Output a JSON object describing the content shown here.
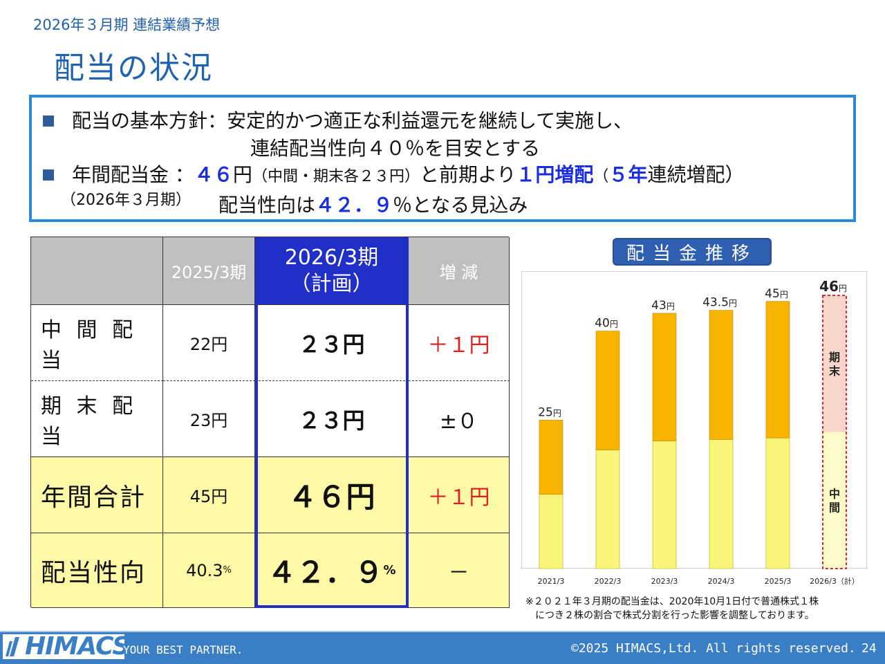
{
  "header": {
    "subtitle": "2026年３月期 連結業績予想",
    "title": "配当の状況"
  },
  "policy": {
    "line1_label": "配当の基本方針：",
    "line1_text": "安定的かつ適正な利益還元を継続して実施し、",
    "line2_text": "連結配当性向４０％を目安とする",
    "line3_label": "年間配当金 ：",
    "line3_amount": "４６",
    "line3_yen": "円",
    "line3_paren": "（中間・期末各２３円）",
    "line3_mid": "と前期より",
    "line3_increase": "１円増配",
    "line3_paren_open": "（",
    "line3_years": "５年",
    "line3_continuous": "連続増配）",
    "line4_label": "（2026年３月期）",
    "line4_prefix": "配当性向は",
    "line4_ratio": "４２．９",
    "line4_suffix": "％となる見込み"
  },
  "table": {
    "headers": [
      "",
      "2025/3期",
      "2026/3期",
      "（計画）",
      "増 減"
    ],
    "rows": [
      {
        "label": "中 間 配 当",
        "prev": "22円",
        "plan": "２３円",
        "diff": "＋１円"
      },
      {
        "label": "期 末 配 当",
        "prev": "23円",
        "plan": "２３円",
        "diff": "±０"
      },
      {
        "label": "年間合計",
        "prev": "45円",
        "plan": "４６円",
        "diff": "＋１円"
      },
      {
        "label": "配当性向",
        "prev": "40.3",
        "prev_unit": "%",
        "plan": "４２．９",
        "plan_unit": "%",
        "diff": "－"
      }
    ]
  },
  "chart_title": "配当金推移",
  "chart_data": {
    "type": "bar",
    "stacked": true,
    "categories": [
      "2021/3",
      "2022/3",
      "2023/3",
      "2024/3",
      "2025/3",
      "2026/3（計）"
    ],
    "series": [
      {
        "name": "中間",
        "values": [
          12.5,
          20,
          21.5,
          21.75,
          22,
          23
        ]
      },
      {
        "name": "期末",
        "values": [
          12.5,
          20,
          21.5,
          21.75,
          23,
          23
        ]
      }
    ],
    "totals": [
      25,
      40,
      43,
      43.5,
      45,
      46
    ],
    "total_labels": [
      "25円",
      "40円",
      "43円",
      "43.5円",
      "45円",
      "46円"
    ],
    "forecast_index": 5,
    "ylim": [
      0,
      48
    ],
    "colors": {
      "interim": "#f8f57a",
      "yearend": "#f7b500",
      "forecast_interim": "#fdfbc8",
      "forecast_yearend": "#f8d6cc",
      "forecast_border": "#d62a2a"
    }
  },
  "chart_note": {
    "line1": "※２０２１年３月期の配当金は、2020年10月1日付で普通株式１株",
    "line2": "につき２株の割合で株式分割を行った影響を調整しております。"
  },
  "footer": {
    "logo": "HIMACS",
    "tagline": "YOUR BEST PARTNER.",
    "copyright": "©2025 HIMACS,Ltd. All rights reserved.",
    "page": "24"
  }
}
